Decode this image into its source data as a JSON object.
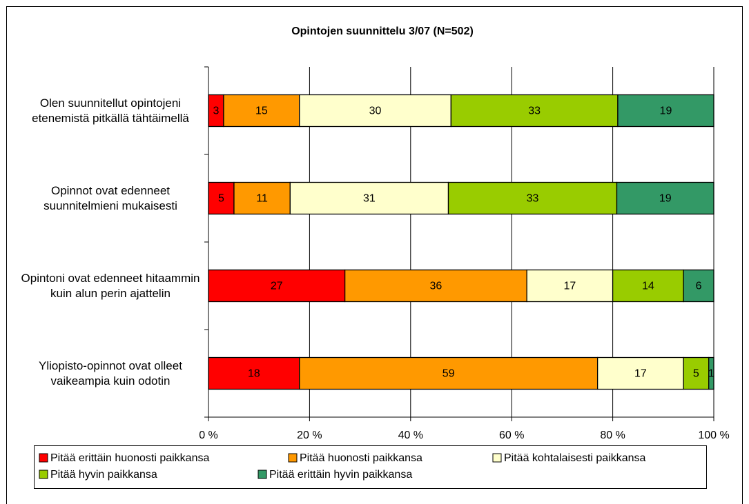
{
  "chart_data": {
    "type": "bar",
    "stacking": "percent",
    "orientation": "horizontal",
    "title": "Opintojen suunnittelu 3/07 (N=502)",
    "categories": [
      "Olen suunnitellut opintojeni etenemistä pitkällä tähtäimellä",
      "Opinnot ovat edenneet suunnitelmieni mukaisesti",
      "Opintoni ovat edenneet hitaammin kuin alun perin ajattelin",
      "Yliopisto-opinnot ovat olleet vaikeampia kuin odotin"
    ],
    "series": [
      {
        "name": "Pitää erittäin huonosti paikkansa",
        "color": "#ff0000",
        "values": [
          3,
          5,
          27,
          18
        ]
      },
      {
        "name": "Pitää huonosti paikkansa",
        "color": "#ff9900",
        "values": [
          15,
          11,
          36,
          59
        ]
      },
      {
        "name": "Pitää kohtalaisesti paikkansa",
        "color": "#ffffcc",
        "values": [
          30,
          31,
          17,
          17
        ]
      },
      {
        "name": "Pitää hyvin paikkansa",
        "color": "#99cc00",
        "values": [
          33,
          33,
          14,
          5
        ]
      },
      {
        "name": "Pitää erittäin hyvin paikkansa",
        "color": "#339966",
        "values": [
          19,
          19,
          6,
          1
        ]
      }
    ],
    "xlim": [
      0,
      100
    ],
    "xticks": [
      {
        "value": 0,
        "label": "0 %"
      },
      {
        "value": 20,
        "label": "20 %"
      },
      {
        "value": 40,
        "label": "40 %"
      },
      {
        "value": 60,
        "label": "60 %"
      },
      {
        "value": 80,
        "label": "80 %"
      },
      {
        "value": 100,
        "label": "100 %"
      }
    ],
    "grid": true,
    "legend": "bottom"
  }
}
